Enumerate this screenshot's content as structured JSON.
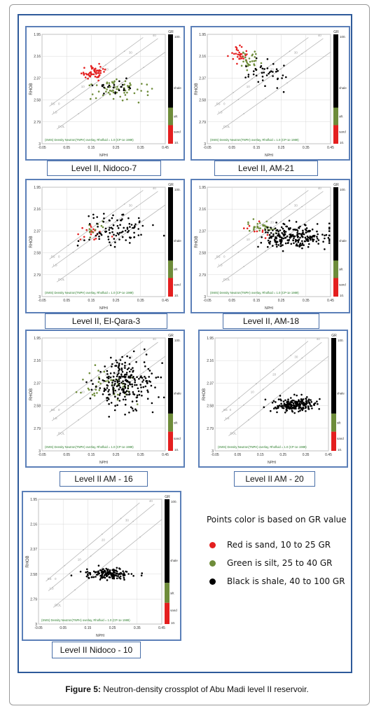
{
  "figure": {
    "label": "Figure 5:",
    "caption": "Neutron-density crossplot of Abu Madi level II reservoir."
  },
  "shared_axes": {
    "xlabel": "NPHI",
    "ylabel": "RHOB",
    "x_ticks": [
      "-0.05",
      "0.05",
      "0.15",
      "0.25",
      "0.35",
      "0.45"
    ],
    "y_ticks": [
      "1.95",
      "2.16",
      "2.37",
      "2.58",
      "2.79",
      "3"
    ],
    "overlay_note": "(SWS) Density Neutron(TNPH) overlay, Rhofluid = 1.0 (CP-1e 1989)",
    "lith_labels": [
      "SS",
      "LS",
      "DOL"
    ],
    "porosity_labels": [
      "40",
      "30",
      "20",
      "10",
      "0"
    ],
    "gr_bar": {
      "title": "GR",
      "top": "100.",
      "bottom": "10.",
      "zones": [
        "shale",
        "silt",
        "sand"
      ],
      "colors": {
        "shale": "#000000",
        "silt": "#6e8c3a",
        "sand": "#e41f1f"
      }
    }
  },
  "legend": {
    "title": "Points color is based on GR value",
    "items": [
      {
        "text": "Red is sand, 10 to 25 GR",
        "color": "#e41f1f"
      },
      {
        "text": "Green is silt, 25 to 40 GR",
        "color": "#6e8c3a"
      },
      {
        "text": "Black is shale, 40 to 100 GR",
        "color": "#000000"
      }
    ]
  },
  "chart_data": [
    {
      "type": "scatter",
      "title": "Level II, Nidoco-7",
      "xlabel": "NPHI",
      "ylabel": "RHOB",
      "xlim": [
        -0.05,
        0.45
      ],
      "ylim": [
        3.0,
        1.95
      ],
      "clusters": [
        {
          "lith": "sand",
          "cx": 0.16,
          "cy": 2.32,
          "sx": 0.022,
          "sy": 0.035,
          "n": 55
        },
        {
          "lith": "silt",
          "cx": 0.24,
          "cy": 2.47,
          "sx": 0.06,
          "sy": 0.05,
          "n": 60
        },
        {
          "lith": "shale",
          "cx": 0.22,
          "cy": 2.47,
          "sx": 0.05,
          "sy": 0.04,
          "n": 22
        }
      ]
    },
    {
      "type": "scatter",
      "title": "Level II, AM-21",
      "xlabel": "NPHI",
      "ylabel": "RHOB",
      "xlim": [
        -0.05,
        0.45
      ],
      "ylim": [
        3.0,
        1.95
      ],
      "clusters": [
        {
          "lith": "sand",
          "cx": 0.09,
          "cy": 2.13,
          "sx": 0.02,
          "sy": 0.04,
          "n": 30
        },
        {
          "lith": "silt",
          "cx": 0.12,
          "cy": 2.2,
          "sx": 0.025,
          "sy": 0.06,
          "n": 30
        },
        {
          "lith": "shale",
          "cx": 0.19,
          "cy": 2.33,
          "sx": 0.045,
          "sy": 0.08,
          "n": 40
        }
      ]
    },
    {
      "type": "scatter",
      "title": "Level II, El-Qara-3",
      "xlabel": "NPHI",
      "ylabel": "RHOB",
      "xlim": [
        -0.05,
        0.45
      ],
      "ylim": [
        3.0,
        1.95
      ],
      "clusters": [
        {
          "lith": "sand",
          "cx": 0.16,
          "cy": 2.38,
          "sx": 0.03,
          "sy": 0.05,
          "n": 18
        },
        {
          "lith": "silt",
          "cx": 0.17,
          "cy": 2.34,
          "sx": 0.02,
          "sy": 0.04,
          "n": 12
        },
        {
          "lith": "shale",
          "cx": 0.26,
          "cy": 2.36,
          "sx": 0.07,
          "sy": 0.08,
          "n": 95
        }
      ]
    },
    {
      "type": "scatter",
      "title": "Level II, AM-18",
      "xlabel": "NPHI",
      "ylabel": "RHOB",
      "xlim": [
        -0.05,
        0.45
      ],
      "ylim": [
        3.0,
        1.95
      ],
      "clusters": [
        {
          "lith": "sand",
          "cx": 0.14,
          "cy": 2.35,
          "sx": 0.03,
          "sy": 0.04,
          "n": 10
        },
        {
          "lith": "silt",
          "cx": 0.17,
          "cy": 2.33,
          "sx": 0.03,
          "sy": 0.03,
          "n": 30
        },
        {
          "lith": "shale",
          "cx": 0.3,
          "cy": 2.42,
          "sx": 0.07,
          "sy": 0.06,
          "n": 230
        }
      ]
    },
    {
      "type": "scatter",
      "title": "Level II AM - 16",
      "xlabel": "NPHI",
      "ylabel": "RHOB",
      "xlim": [
        -0.05,
        0.45
      ],
      "ylim": [
        3.0,
        1.95
      ],
      "clusters": [
        {
          "lith": "silt",
          "cx": 0.23,
          "cy": 2.4,
          "sx": 0.06,
          "sy": 0.08,
          "n": 45
        },
        {
          "lith": "shale",
          "cx": 0.29,
          "cy": 2.37,
          "sx": 0.06,
          "sy": 0.12,
          "n": 240
        }
      ]
    },
    {
      "type": "scatter",
      "title": "Level II AM - 20",
      "xlabel": "NPHI",
      "ylabel": "RHOB",
      "xlim": [
        -0.05,
        0.45
      ],
      "ylim": [
        3.0,
        1.95
      ],
      "clusters": [
        {
          "lith": "shale",
          "cx": 0.3,
          "cy": 2.57,
          "sx": 0.05,
          "sy": 0.035,
          "n": 200
        }
      ]
    },
    {
      "type": "scatter",
      "title": "Level II Nidoco - 10",
      "xlabel": "NPHI",
      "ylabel": "RHOB",
      "xlim": [
        -0.05,
        0.45
      ],
      "ylim": [
        3.0,
        1.95
      ],
      "clusters": [
        {
          "lith": "shale",
          "cx": 0.23,
          "cy": 2.58,
          "sx": 0.05,
          "sy": 0.025,
          "n": 150
        }
      ]
    }
  ]
}
